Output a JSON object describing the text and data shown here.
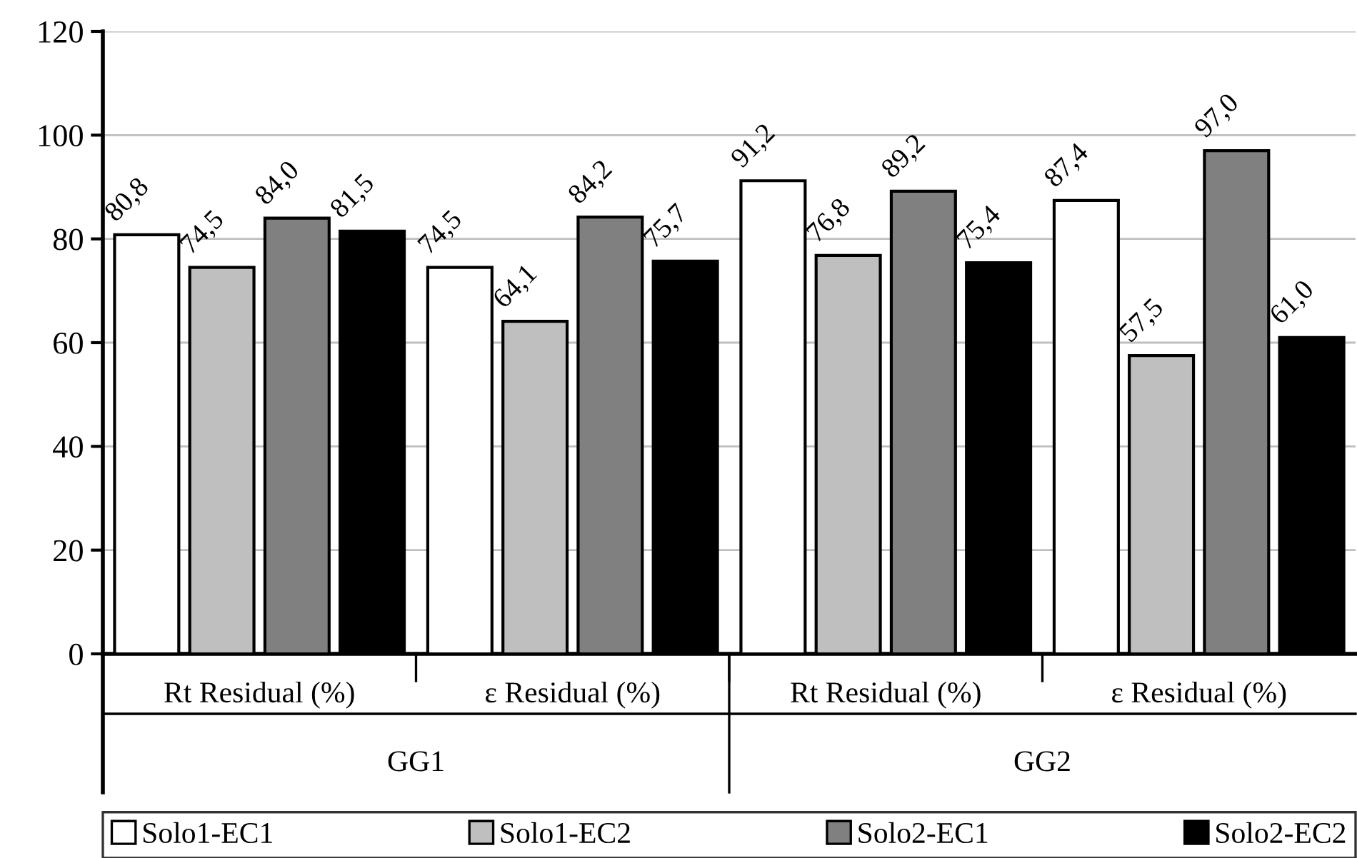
{
  "chart_data": {
    "type": "bar",
    "categories": [
      "Rt Residual (%)",
      "ε Residual (%)",
      "Rt Residual (%)",
      "ε Residual (%)"
    ],
    "annotations": [
      "GG1",
      "GG2"
    ],
    "series": [
      {
        "name": "Solo1-EC1",
        "color": "#ffffff",
        "values": [
          80.8,
          74.5,
          91.2,
          87.4
        ],
        "value_labels": [
          "80,8",
          "74,5",
          "91,2",
          "87,4"
        ]
      },
      {
        "name": "Solo1-EC2",
        "color": "#bfbfbf",
        "values": [
          74.5,
          64.1,
          76.8,
          57.5
        ],
        "value_labels": [
          "74,5",
          "64,1",
          "76,8",
          "57,5"
        ]
      },
      {
        "name": "Solo2-EC1",
        "color": "#808080",
        "values": [
          84.0,
          84.2,
          89.2,
          97.0
        ],
        "value_labels": [
          "84,0",
          "84,2",
          "89,2",
          "97,0"
        ]
      },
      {
        "name": "Solo2-EC2",
        "color": "#000000",
        "values": [
          81.5,
          75.7,
          75.4,
          61.0
        ],
        "value_labels": [
          "81,5",
          "75,7",
          "75,4",
          "61,0"
        ]
      }
    ],
    "ylim": [
      0,
      120
    ],
    "yticks": [
      0,
      20,
      40,
      60,
      80,
      100,
      120
    ],
    "grid": "y",
    "legend": "bottom"
  }
}
